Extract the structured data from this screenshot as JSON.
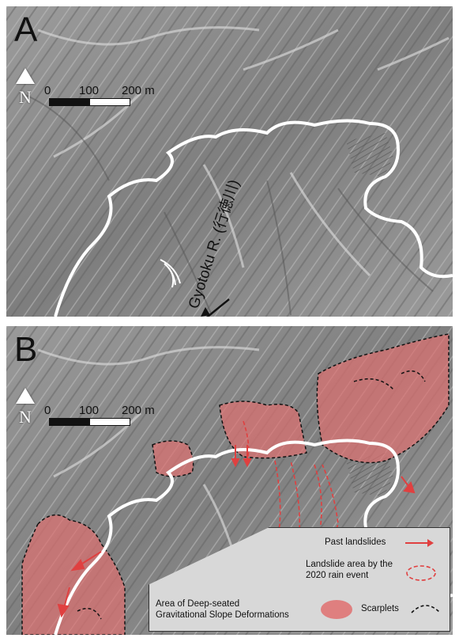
{
  "panel_a": {
    "letter": "A",
    "north_label": "N",
    "scale": {
      "t0": "0",
      "t1": "100",
      "t2": "200 m"
    },
    "river_label": "Gyotoku R. (行徳川)"
  },
  "panel_b": {
    "letter": "B",
    "north_label": "N",
    "scale": {
      "t0": "0",
      "t1": "100",
      "t2": "200 m"
    }
  },
  "legend": {
    "past_landslides": "Past landslides",
    "landslide_2020": "Landslide area by the 2020 rain event",
    "dsgsd": "Area of Deep-seated Gravitational Slope Deformations",
    "scarplets": "Scarplets"
  },
  "colors": {
    "landslide_fill": "#e07070",
    "landslide_line": "#e04040",
    "river": "#ffffff",
    "legend_bg": "#d8d8d8"
  }
}
